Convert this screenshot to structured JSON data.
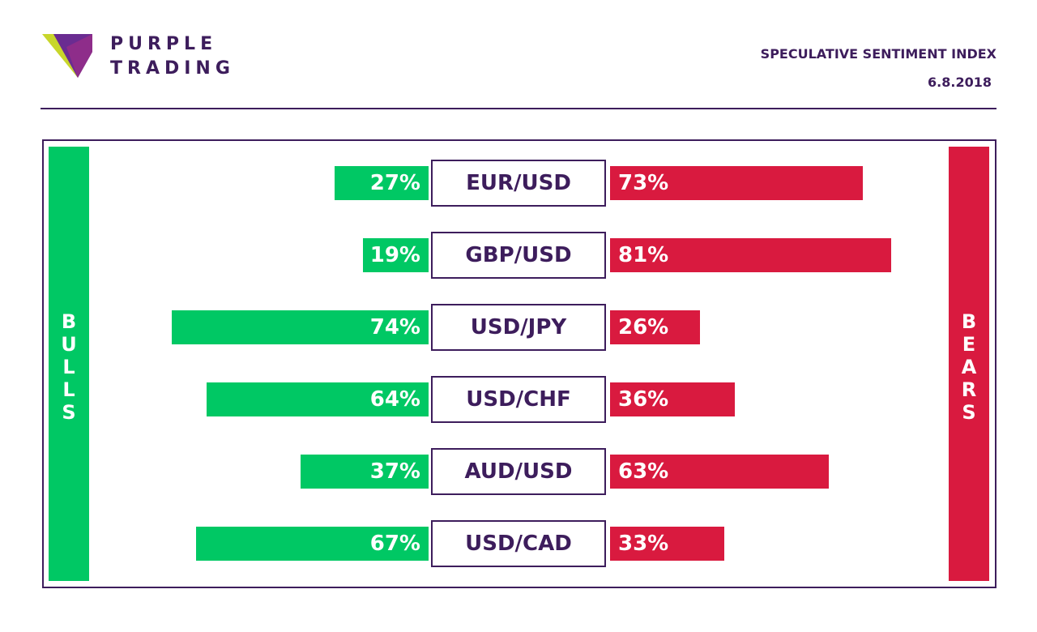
{
  "brand": {
    "line1": "PURPLE",
    "line2": "TRADING",
    "logo_colors": [
      "#c8d62b",
      "#6a2c91",
      "#8e2d8a"
    ]
  },
  "header": {
    "title": "SPECULATIVE SENTIMENT INDEX",
    "date": "6.8.2018"
  },
  "colors": {
    "bulls": "#00c864",
    "bears": "#d91a3f",
    "accent": "#3d1d5c"
  },
  "chart_data": {
    "type": "bar",
    "title": "SPECULATIVE SENTIMENT INDEX",
    "left_label": "BULLS",
    "right_label": "BEARS",
    "categories": [
      "EUR/USD",
      "GBP/USD",
      "USD/JPY",
      "USD/CHF",
      "AUD/USD",
      "USD/CAD"
    ],
    "series": [
      {
        "name": "BULLS",
        "values": [
          27,
          19,
          74,
          64,
          37,
          67
        ],
        "labels": [
          "27%",
          "19%",
          "74%",
          "64%",
          "37%",
          "67%"
        ]
      },
      {
        "name": "BEARS",
        "values": [
          73,
          81,
          26,
          36,
          63,
          33
        ],
        "labels": [
          "73%",
          "81%",
          "26%",
          "36%",
          "63%",
          "33%"
        ]
      }
    ],
    "ylim": [
      0,
      100
    ]
  }
}
